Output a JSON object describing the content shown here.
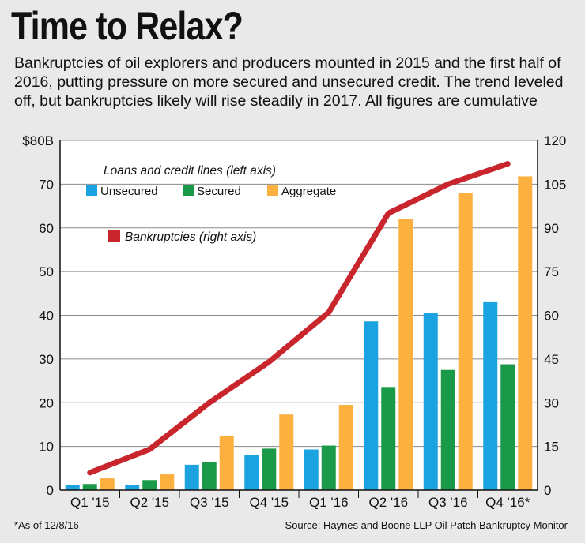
{
  "title": "Time to Relax?",
  "subtitle": "Bankruptcies of oil explorers and producers mounted in 2015 and the first half of 2016, putting pressure on more secured and unsecured credit. The trend leveled off, but bankruptcies likely will rise steadily in 2017. All figures are cumulative",
  "footnote": "*As of 12/8/16",
  "source": "Source: Haynes and Boone LLP Oil Patch Bankruptcy Monitor",
  "chart_data": {
    "type": "bar",
    "categories": [
      "Q1 '15",
      "Q2 '15",
      "Q3 '15",
      "Q4 '15",
      "Q1 '16",
      "Q2 '16",
      "Q3 '16",
      "Q4 '16*"
    ],
    "left_axis": {
      "label": "Loans and credit lines (left axis)",
      "ylim": [
        0,
        80
      ],
      "ticks": [
        0,
        10,
        20,
        30,
        40,
        50,
        60,
        70,
        80
      ],
      "tick_labels": [
        "0",
        "10",
        "20",
        "30",
        "40",
        "50",
        "60",
        "70",
        "$80B"
      ]
    },
    "right_axis": {
      "label": "Bankruptcies (right axis)",
      "ylim": [
        0,
        120
      ],
      "ticks": [
        0,
        15,
        30,
        45,
        60,
        75,
        90,
        105,
        120
      ],
      "tick_labels": [
        "0",
        "15",
        "30",
        "45",
        "60",
        "75",
        "90",
        "105",
        "120"
      ]
    },
    "series": [
      {
        "name": "Unsecured",
        "color": "#1aa3e0",
        "axis": "left",
        "values": [
          1.2,
          1.2,
          5.8,
          8.0,
          9.3,
          38.6,
          40.6,
          43.0
        ]
      },
      {
        "name": "Secured",
        "color": "#1a9a48",
        "axis": "left",
        "values": [
          1.4,
          2.3,
          6.5,
          9.5,
          10.2,
          23.6,
          27.5,
          28.8
        ]
      },
      {
        "name": "Aggregate",
        "color": "#fbb040",
        "axis": "left",
        "values": [
          2.7,
          3.6,
          12.3,
          17.3,
          19.5,
          62.0,
          68.0,
          71.8
        ]
      }
    ],
    "line_series": {
      "name": "Bankruptcies",
      "color": "#c9252c",
      "axis": "right",
      "values": [
        6,
        14,
        30,
        44,
        61,
        95,
        105,
        112
      ]
    },
    "grid": true
  }
}
